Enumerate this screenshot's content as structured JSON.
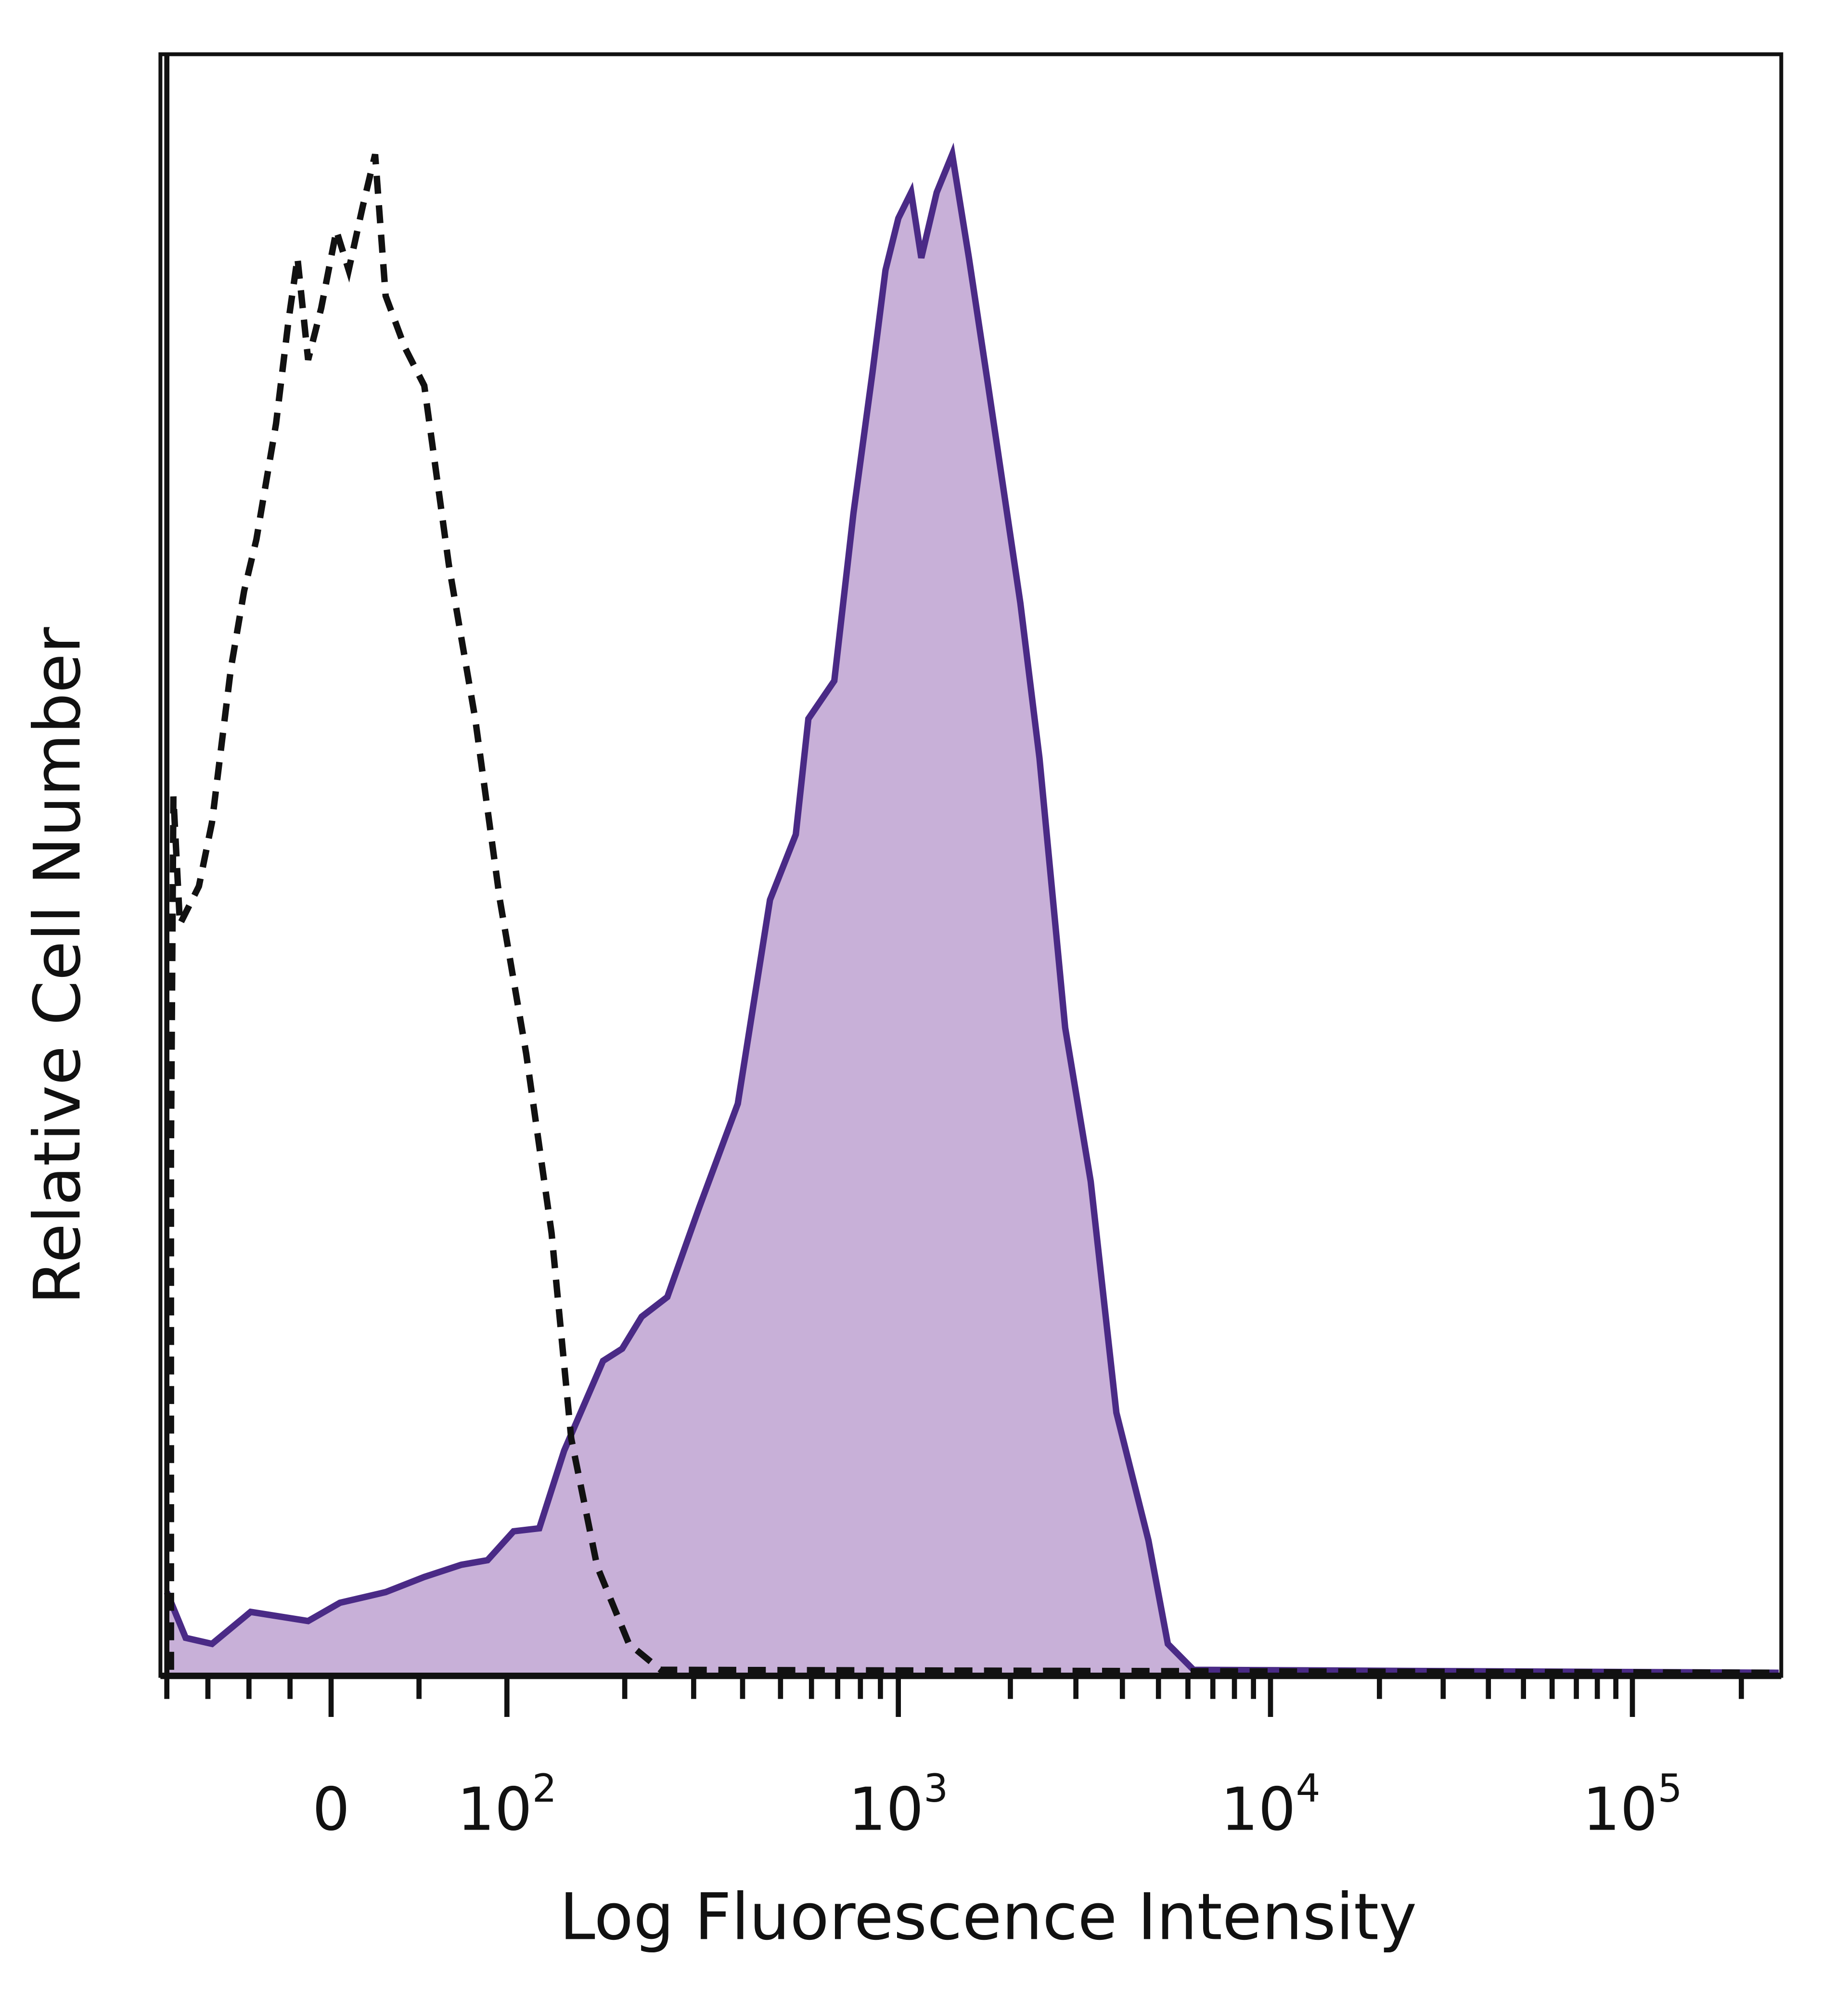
{
  "chart_data": {
    "type": "area",
    "xlabel": "Log Fluorescence Intensity",
    "ylabel": "Relative Cell Number",
    "x_scale": "biexponential",
    "xlim": [
      -200,
      262144
    ],
    "ylim": [
      0,
      106
    ],
    "grid": false,
    "legend": "none",
    "x_ticks": [
      {
        "value": 0,
        "base": "0",
        "exp": ""
      },
      {
        "value": 100,
        "base": "10",
        "exp": "2"
      },
      {
        "value": 1000,
        "base": "10",
        "exp": "3"
      },
      {
        "value": 10000,
        "base": "10",
        "exp": "4"
      },
      {
        "value": 100000,
        "base": "10",
        "exp": "5"
      }
    ],
    "colors": {
      "fill": "#c8b0d8",
      "line": "#4a2a86",
      "control": "#111111"
    },
    "series": [
      {
        "style": "filled-solid",
        "x": [
          -200,
          -177,
          -145,
          -98,
          -28,
          5,
          31,
          53,
          74,
          89,
          104,
          121,
          140,
          176,
          197,
          221,
          257,
          310,
          389,
          470,
          547,
          589,
          686,
          768,
          859,
          927,
          1000,
          1083,
          1153,
          1268,
          1396,
          1548,
          1743,
          2128,
          2395,
          2807,
          3289,
          3855,
          4699,
          5297,
          6209,
          262144
        ],
        "y": [
          5.5,
          2.5,
          2.1,
          4.2,
          3.6,
          4.8,
          5.5,
          6.5,
          7.3,
          7.6,
          9.5,
          9.7,
          14.8,
          20.7,
          21.5,
          23.6,
          24.9,
          30.8,
          37.6,
          51,
          55.3,
          62.9,
          65.4,
          76.4,
          85.7,
          92.4,
          95.8,
          97.5,
          93.2,
          97.5,
          100,
          93.2,
          84.8,
          70.5,
          60.3,
          42.6,
          32.5,
          17.3,
          8.9,
          2.1,
          0.4,
          0.2
        ]
      },
      {
        "style": "dashed-unfilled",
        "x": [
          -195,
          -195,
          -192,
          -184,
          -161,
          -145,
          -122,
          -106,
          -91,
          -67,
          -52,
          -41,
          -28,
          -12,
          3,
          10,
          18,
          25,
          31,
          42,
          53,
          67,
          82,
          96,
          112,
          130,
          146,
          170,
          205,
          247,
          262144
        ],
        "y": [
          0.4,
          34.2,
          57.8,
          49.4,
          51.9,
          56.1,
          66.2,
          71.3,
          74.7,
          82.3,
          89,
          93.2,
          86.5,
          89.9,
          95,
          92.4,
          96.6,
          100,
          90.7,
          87.3,
          84.8,
          73,
          62.9,
          51,
          40.9,
          29.1,
          15.6,
          7.2,
          2.1,
          0.4,
          0.2
        ]
      }
    ]
  }
}
